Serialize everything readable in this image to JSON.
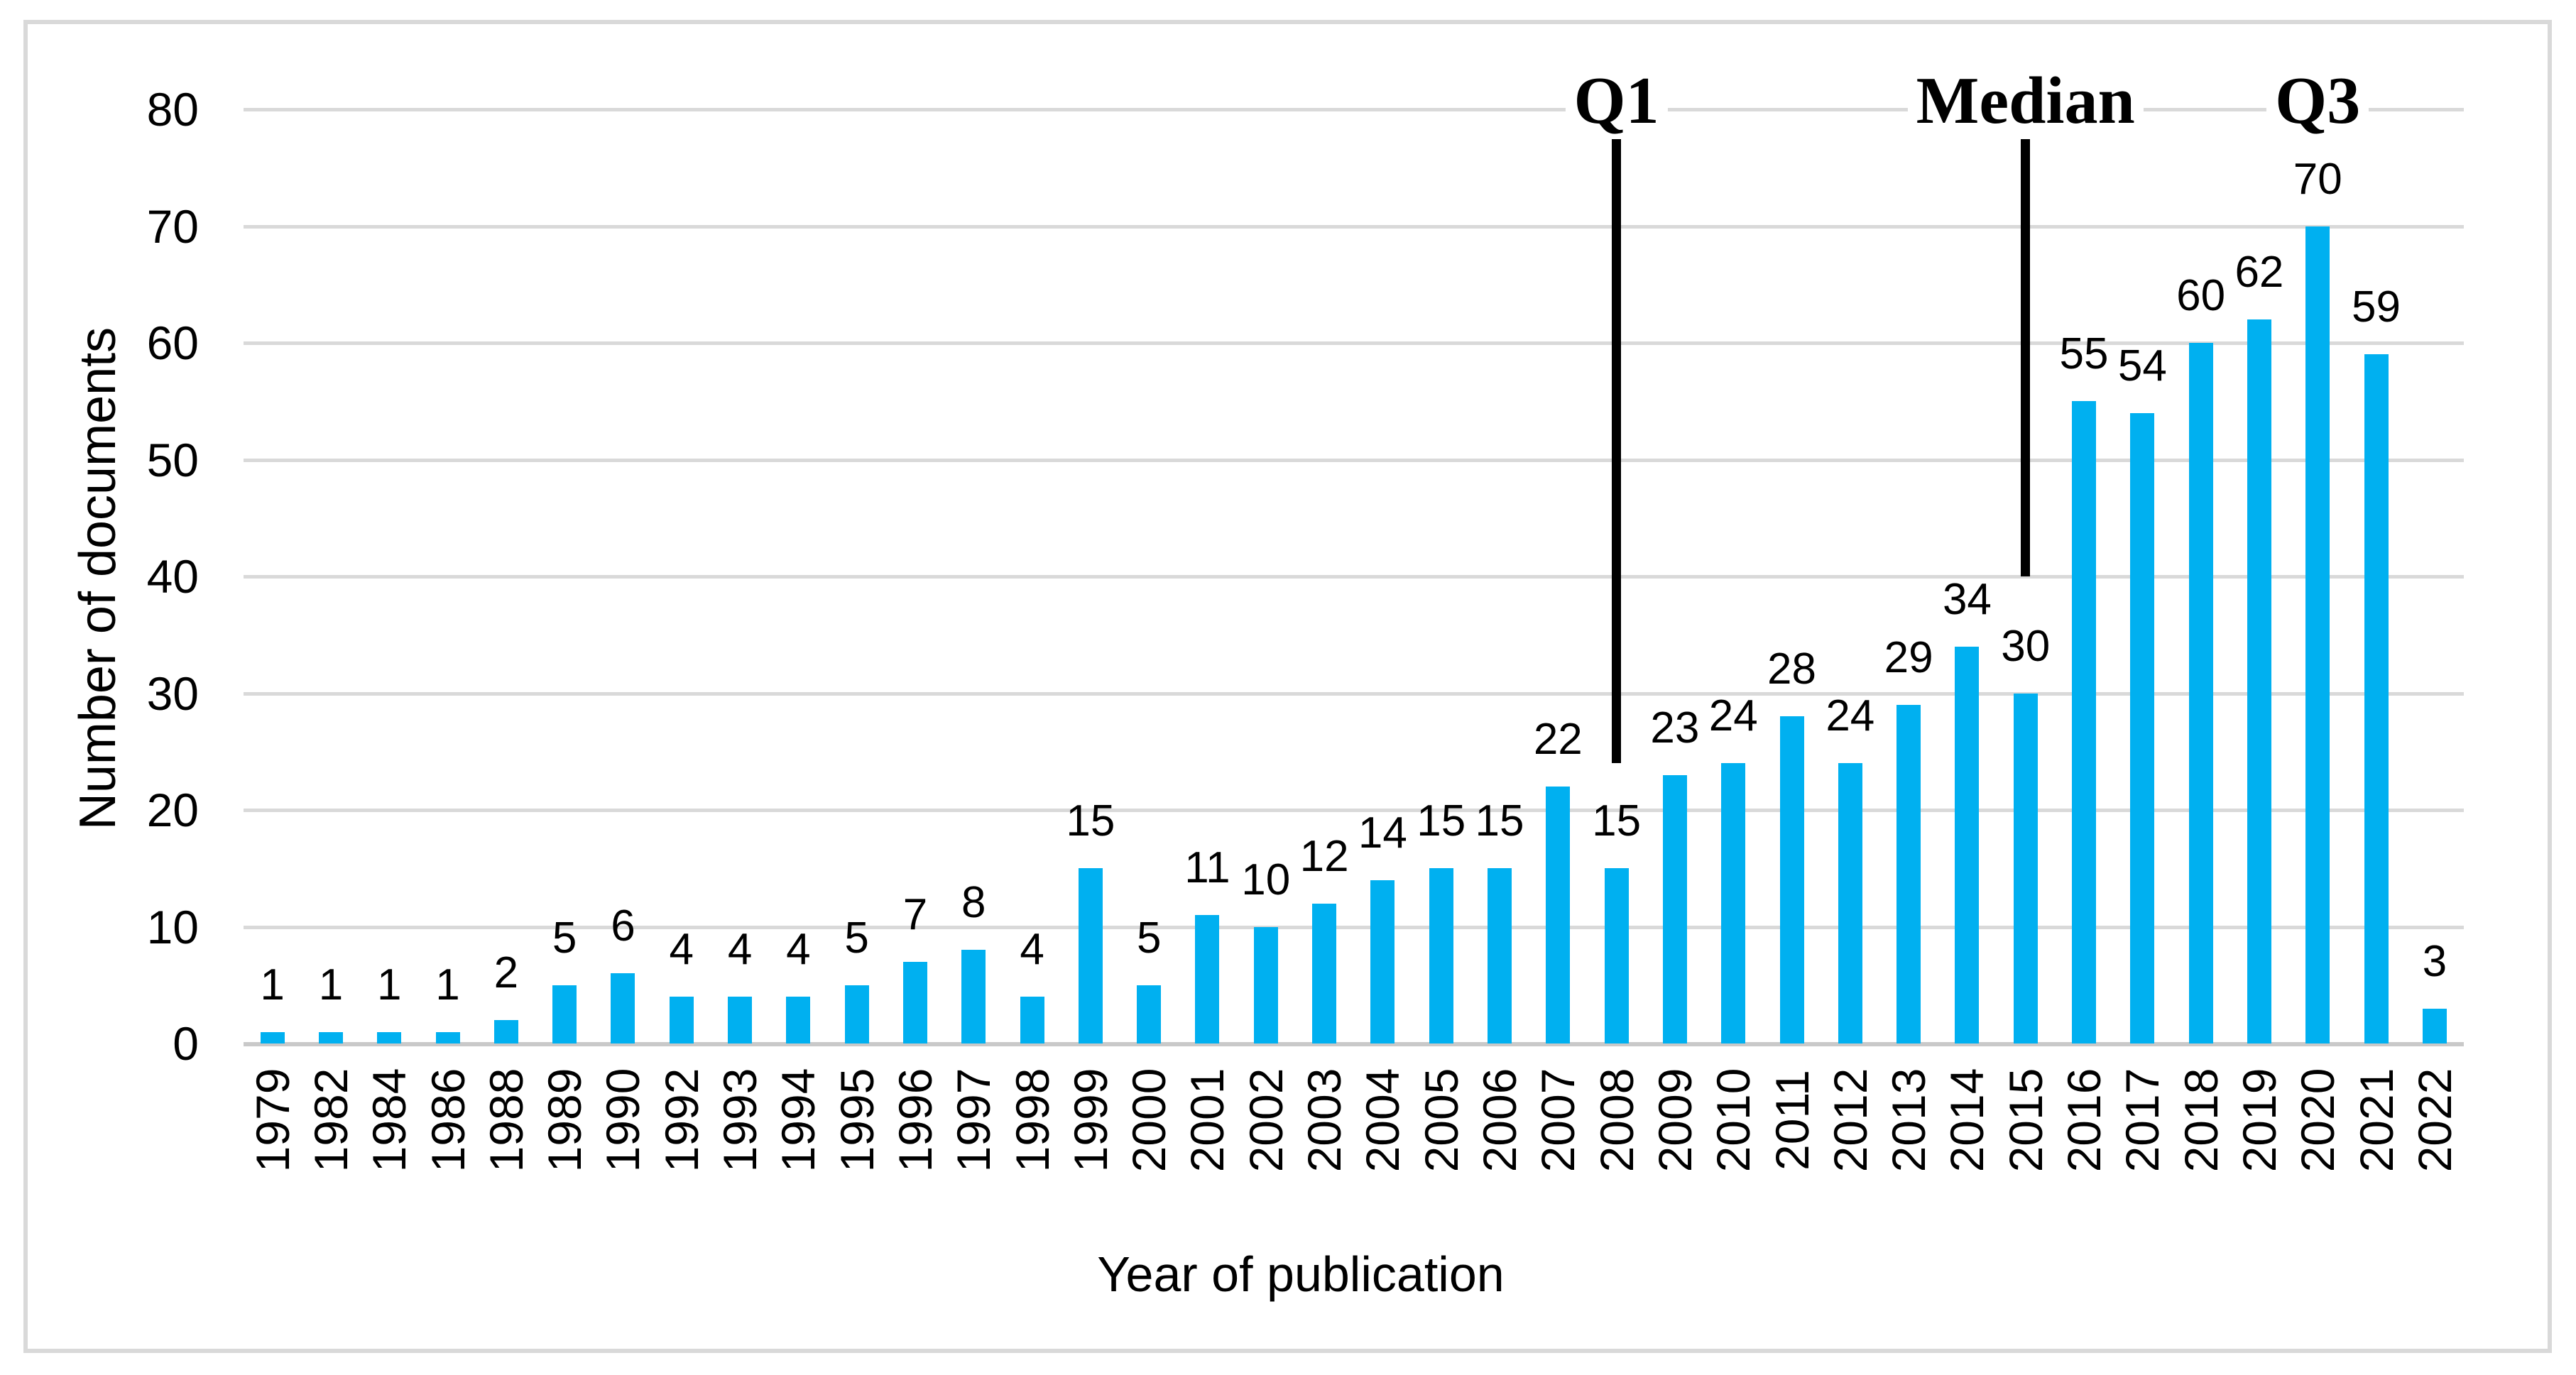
{
  "figure": {
    "background_color": "#FFFFFF",
    "border_color": "#D9D9D9"
  },
  "chart_data": {
    "type": "bar",
    "title": "",
    "xlabel": "Year of publication",
    "ylabel": "Number of documents",
    "categories": [
      "1979",
      "1982",
      "1984",
      "1986",
      "1988",
      "1989",
      "1990",
      "1992",
      "1993",
      "1994",
      "1995",
      "1996",
      "1997",
      "1998",
      "1999",
      "2000",
      "2001",
      "2002",
      "2003",
      "2004",
      "2005",
      "2006",
      "2007",
      "2008",
      "2009",
      "2010",
      "2011",
      "2012",
      "2013",
      "2014",
      "2015",
      "2016",
      "2017",
      "2018",
      "2019",
      "2020",
      "2021",
      "2022"
    ],
    "values": [
      1,
      1,
      1,
      1,
      2,
      5,
      6,
      4,
      4,
      4,
      5,
      7,
      8,
      4,
      15,
      5,
      11,
      10,
      12,
      14,
      15,
      15,
      22,
      15,
      23,
      24,
      28,
      24,
      29,
      34,
      30,
      55,
      54,
      60,
      62,
      70,
      59,
      3
    ],
    "data_labels_visible": true,
    "ylim": [
      0,
      80
    ],
    "yticks": [
      0,
      10,
      20,
      30,
      40,
      50,
      60,
      70,
      80
    ],
    "grid": true,
    "legend": null,
    "bar_color": "#00B0F0",
    "gridline_color": "#D9D9D9",
    "label_color": "#000000",
    "annotations": [
      {
        "id": "q1",
        "label": "Q1",
        "category": "2008",
        "has_line": true,
        "line_end_value": 24
      },
      {
        "id": "median",
        "label": "Median",
        "category": "2015",
        "has_line": true,
        "line_end_value": 40
      },
      {
        "id": "q3",
        "label": "Q3",
        "category": "2020",
        "has_line": false,
        "line_end_value": null
      }
    ]
  }
}
